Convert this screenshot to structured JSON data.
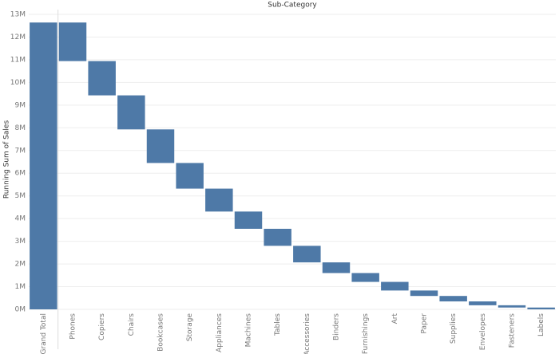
{
  "chart_data": {
    "type": "waterfall",
    "title": "Sub-Category",
    "y_label": "Running Sum of Sales",
    "categories": [
      "Grand Total",
      "Phones",
      "Copiers",
      "Chairs",
      "Bookcases",
      "Storage",
      "Appliances",
      "Machines",
      "Tables",
      "Accessories",
      "Binders",
      "Furnishings",
      "Art",
      "Paper",
      "Supplies",
      "Envelopes",
      "Fasteners",
      "Labels"
    ],
    "values": [
      12640000,
      1700000,
      1510000,
      1500000,
      1480000,
      1130000,
      1010000,
      760000,
      750000,
      730000,
      470000,
      390000,
      380000,
      240000,
      240000,
      170000,
      100000,
      80000
    ],
    "color": "#4e79a7",
    "ylim": [
      0,
      13000000
    ],
    "yticks": [
      {
        "value": 0,
        "label": "0M"
      },
      {
        "value": 1000000,
        "label": "1M"
      },
      {
        "value": 2000000,
        "label": "2M"
      },
      {
        "value": 3000000,
        "label": "3M"
      },
      {
        "value": 4000000,
        "label": "4M"
      },
      {
        "value": 5000000,
        "label": "5M"
      },
      {
        "value": 6000000,
        "label": "6M"
      },
      {
        "value": 7000000,
        "label": "7M"
      },
      {
        "value": 8000000,
        "label": "8M"
      },
      {
        "value": 9000000,
        "label": "9M"
      },
      {
        "value": 10000000,
        "label": "10M"
      },
      {
        "value": 11000000,
        "label": "11M"
      },
      {
        "value": 12000000,
        "label": "12M"
      },
      {
        "value": 13000000,
        "label": "13M"
      }
    ],
    "grid": true
  }
}
